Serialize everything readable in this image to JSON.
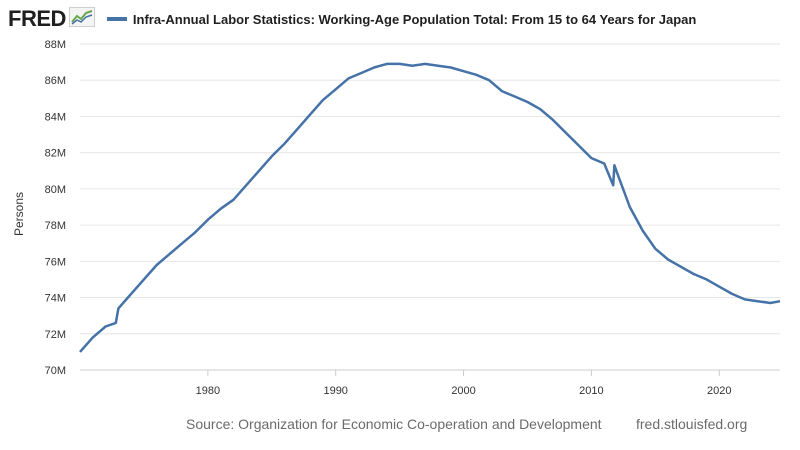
{
  "header": {
    "logo_text": "FRED",
    "logo_icon": "trend-chart-icon",
    "legend_label": "Infra-Annual Labor Statistics: Working-Age Population Total: From 15 to 64 Years for Japan"
  },
  "footer": {
    "source": "Source: Organization for Economic Co-operation and Development",
    "site": "fred.stlouisfed.org"
  },
  "colors": {
    "series": "#4572a7",
    "grid": "#e6e6e6",
    "text": "#333333",
    "footer": "#6b6b6b"
  },
  "chart_data": {
    "type": "line",
    "title": "Infra-Annual Labor Statistics: Working-Age Population Total: From 15 to 64 Years for Japan",
    "xlabel": "",
    "ylabel": "Persons",
    "xlim": [
      1970,
      2024.75
    ],
    "ylim": [
      70,
      88
    ],
    "y_unit_suffix": "M",
    "x_ticks": [
      1980,
      1990,
      2000,
      2010,
      2020
    ],
    "y_ticks": [
      70,
      72,
      74,
      76,
      78,
      80,
      82,
      84,
      86,
      88
    ],
    "y_tick_labels": [
      "70M",
      "72M",
      "74M",
      "76M",
      "78M",
      "80M",
      "82M",
      "84M",
      "86M",
      "88M"
    ],
    "grid": true,
    "legend": "top",
    "series": [
      {
        "name": "Infra-Annual Labor Statistics: Working-Age Population Total: From 15 to 64 Years for Japan",
        "x": [
          1970,
          1971,
          1972,
          1972.8,
          1973,
          1974,
          1975,
          1976,
          1977,
          1978,
          1979,
          1980,
          1981,
          1982,
          1983,
          1984,
          1985,
          1986,
          1987,
          1988,
          1989,
          1990,
          1991,
          1992,
          1993,
          1994,
          1995,
          1996,
          1997,
          1998,
          1999,
          2000,
          2001,
          2002,
          2003,
          2004,
          2005,
          2006,
          2007,
          2008,
          2009,
          2010,
          2011,
          2011.7,
          2011.8,
          2012,
          2013,
          2014,
          2015,
          2016,
          2017,
          2018,
          2019,
          2020,
          2021,
          2022,
          2023,
          2024,
          2024.75
        ],
        "values": [
          71.0,
          71.8,
          72.4,
          72.6,
          73.4,
          74.2,
          75.0,
          75.8,
          76.4,
          77.0,
          77.6,
          78.3,
          78.9,
          79.4,
          80.2,
          81.0,
          81.8,
          82.5,
          83.3,
          84.1,
          84.9,
          85.5,
          86.1,
          86.4,
          86.7,
          86.9,
          86.9,
          86.8,
          86.9,
          86.8,
          86.7,
          86.5,
          86.3,
          86.0,
          85.4,
          85.1,
          84.8,
          84.4,
          83.8,
          83.1,
          82.4,
          81.7,
          81.4,
          80.2,
          81.3,
          80.9,
          79.0,
          77.7,
          76.7,
          76.1,
          75.7,
          75.3,
          75.0,
          74.6,
          74.2,
          73.9,
          73.8,
          73.7,
          73.8
        ]
      }
    ]
  }
}
